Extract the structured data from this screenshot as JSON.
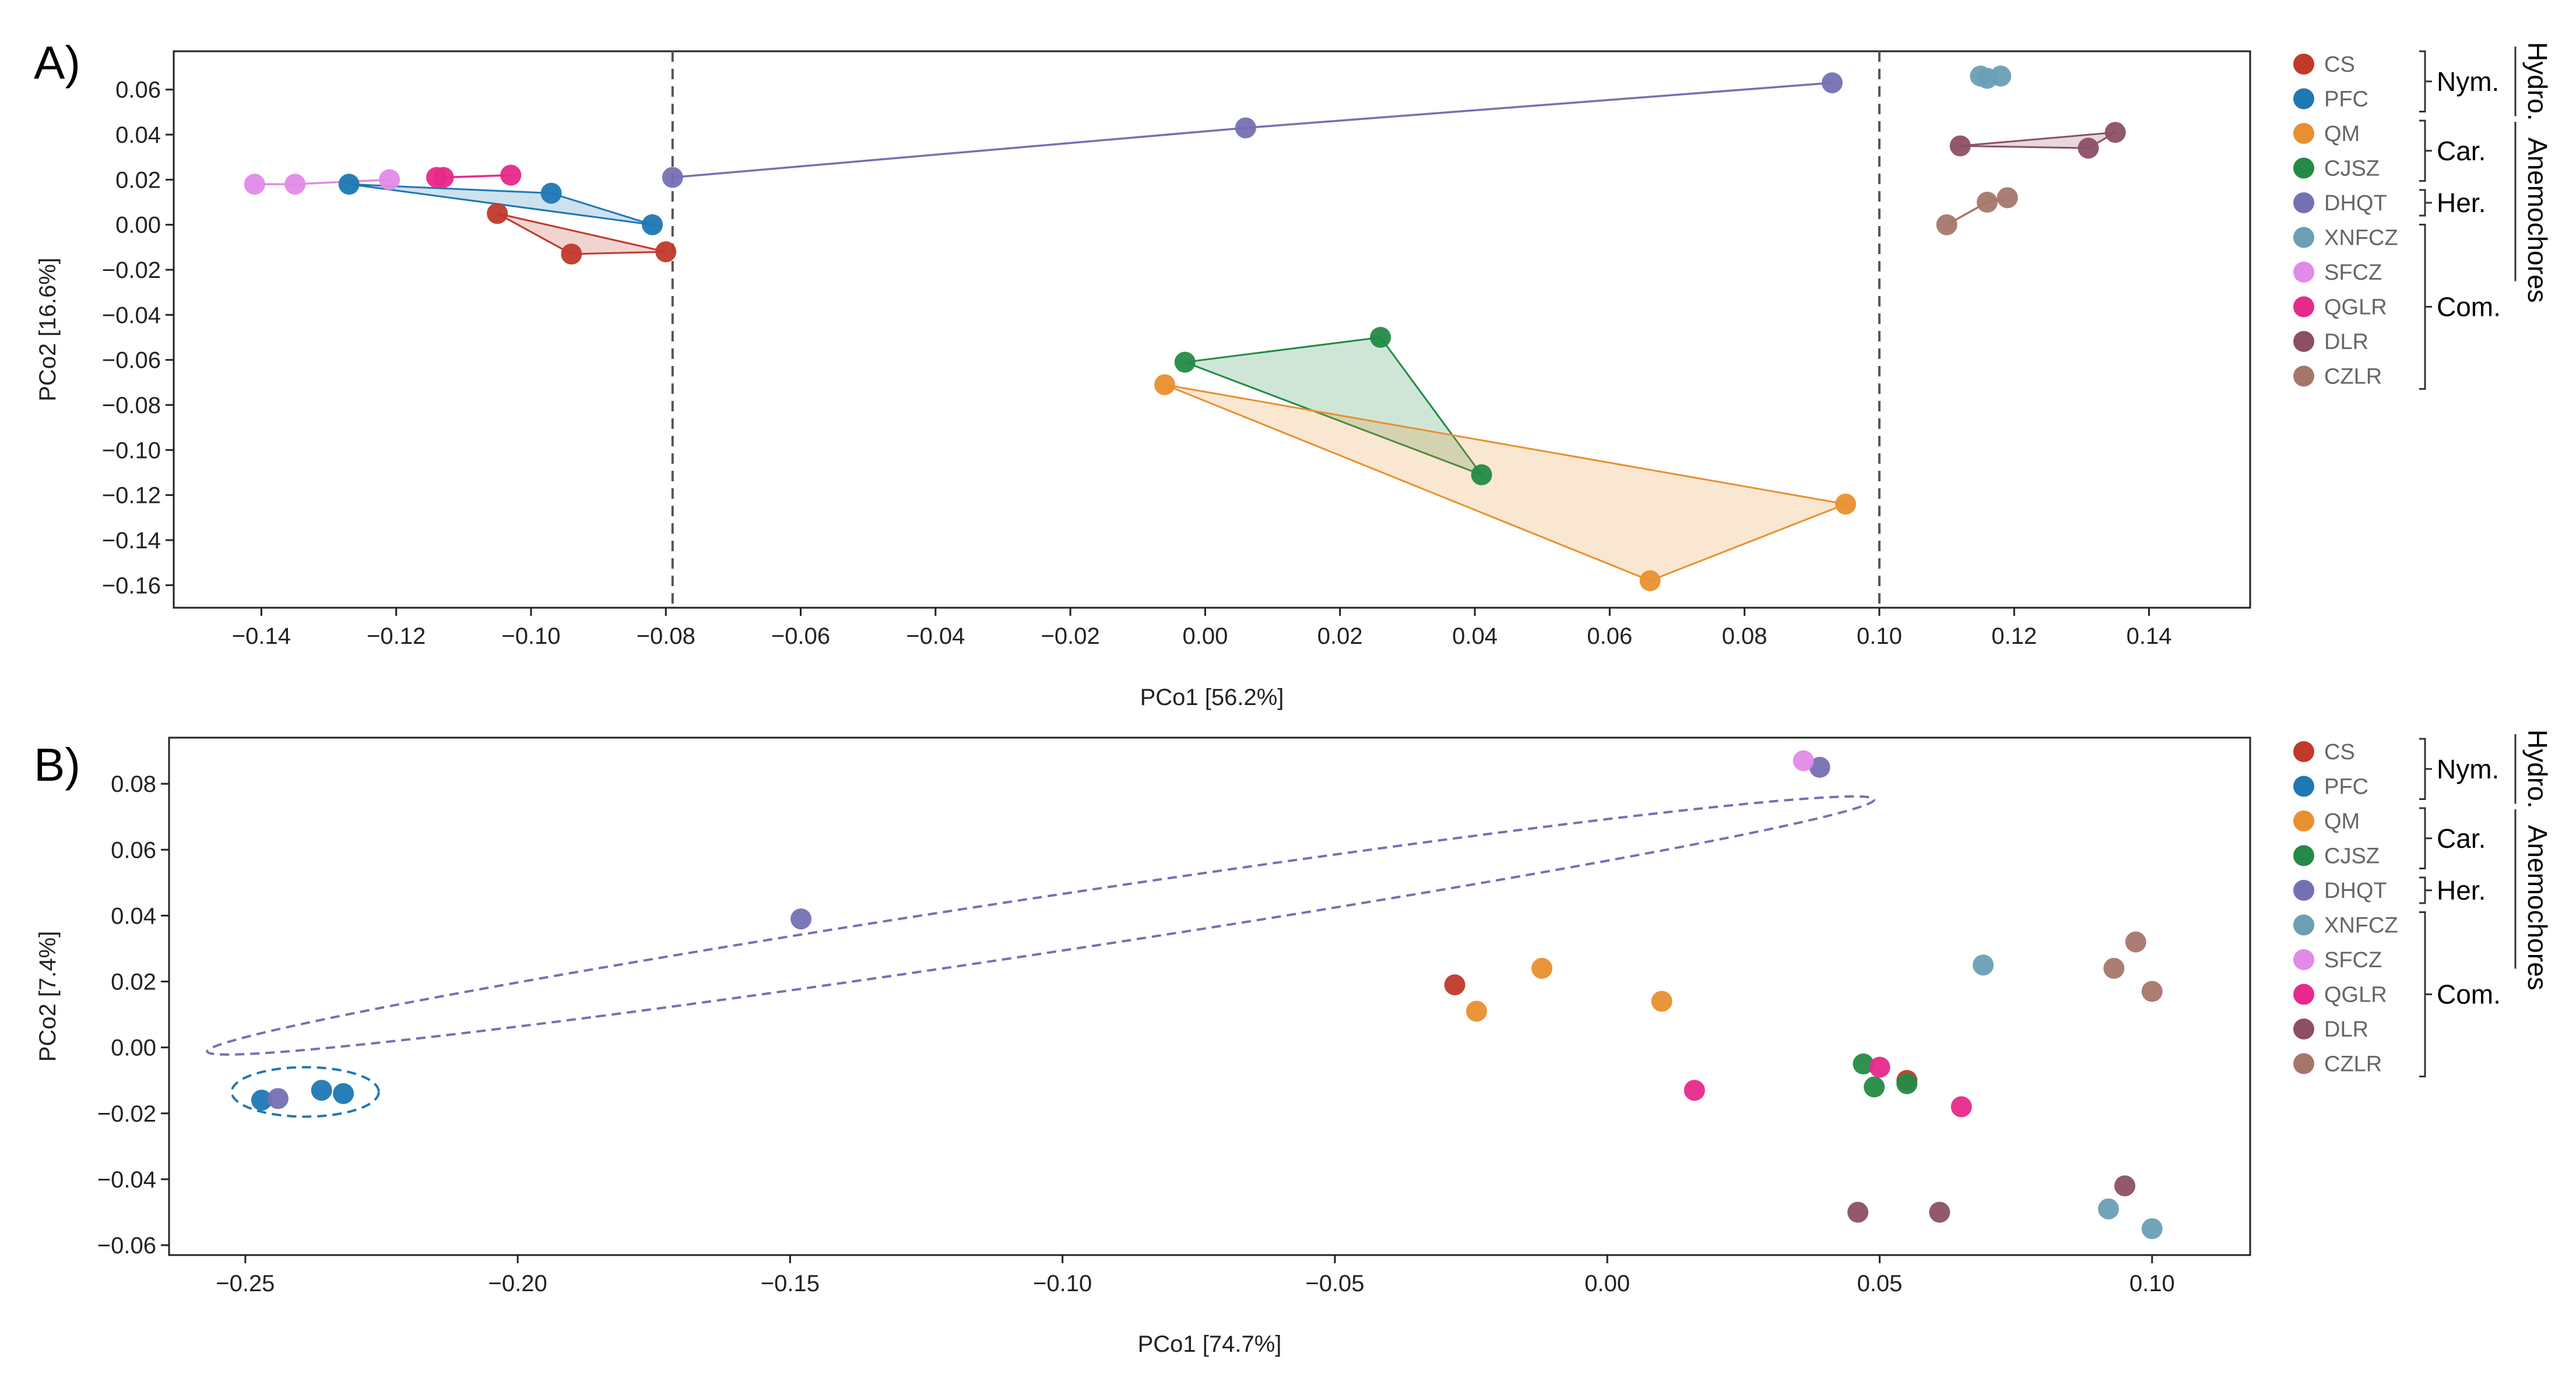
{
  "colors": {
    "CS": "#c0392b",
    "PFC": "#1f77b4",
    "QM": "#e8902f",
    "CJSZ": "#238b45",
    "DHQT": "#7570b3",
    "XNFCZ": "#6a9fb5",
    "SFCZ": "#e28ae8",
    "QGLR": "#e7298a",
    "DLR": "#8c4f66",
    "CZLR": "#a5776b"
  },
  "legend": {
    "items": [
      "CS",
      "PFC",
      "QM",
      "CJSZ",
      "DHQT",
      "XNFCZ",
      "SFCZ",
      "QGLR",
      "DLR",
      "CZLR"
    ],
    "groups": [
      {
        "label": "Nym.",
        "members": [
          "CS",
          "PFC"
        ]
      },
      {
        "label": "Car.",
        "members": [
          "QM",
          "CJSZ"
        ]
      },
      {
        "label": "Her.",
        "members": [
          "DHQT"
        ]
      },
      {
        "label": "Com.",
        "members": [
          "XNFCZ",
          "SFCZ",
          "QGLR",
          "DLR",
          "CZLR"
        ]
      }
    ],
    "super_groups": [
      {
        "label": "Hydro.",
        "members": [
          "CS",
          "PFC"
        ]
      },
      {
        "label": "Anemochores",
        "members": [
          "QM",
          "CJSZ",
          "DHQT",
          "XNFCZ",
          "SFCZ",
          "QGLR",
          "DLR",
          "CZLR"
        ]
      }
    ]
  },
  "chart_data": [
    {
      "panel_label": "A)",
      "type": "scatter",
      "xlabel": "PCo1 [56.2%]",
      "ylabel": "PCo2 [16.6%]",
      "xlim": [
        -0.153,
        0.155
      ],
      "ylim": [
        -0.17,
        0.077
      ],
      "xticks": [
        -0.14,
        -0.12,
        -0.1,
        -0.08,
        -0.06,
        -0.04,
        -0.02,
        0.0,
        0.02,
        0.04,
        0.06,
        0.08,
        0.1,
        0.12,
        0.14
      ],
      "xtick_labels": [
        "−0.14",
        "−0.12",
        "−0.10",
        "−0.08",
        "−0.06",
        "−0.04",
        "−0.02",
        "0.00",
        "0.02",
        "0.04",
        "0.06",
        "0.08",
        "0.10",
        "0.12",
        "0.14"
      ],
      "yticks": [
        0.06,
        0.04,
        0.02,
        0.0,
        -0.02,
        -0.04,
        -0.06,
        -0.08,
        -0.1,
        -0.12,
        -0.14,
        -0.16
      ],
      "ytick_labels": [
        "0.06",
        "0.04",
        "0.02",
        "0.00",
        "−0.02",
        "−0.04",
        "−0.06",
        "−0.08",
        "−0.10",
        "−0.12",
        "−0.14",
        "−0.16"
      ],
      "vlines": [
        -0.079,
        0.1
      ],
      "hulls": [
        {
          "series": "PFC",
          "points": [
            [
              -0.127,
              0.018
            ],
            [
              -0.097,
              0.014
            ],
            [
              -0.082,
              0.0
            ]
          ]
        },
        {
          "series": "CS",
          "points": [
            [
              -0.105,
              0.005
            ],
            [
              -0.094,
              -0.013
            ],
            [
              -0.08,
              -0.012
            ]
          ]
        },
        {
          "series": "CJSZ",
          "points": [
            [
              -0.003,
              -0.061
            ],
            [
              0.026,
              -0.05
            ],
            [
              0.041,
              -0.111
            ]
          ]
        },
        {
          "series": "QM",
          "points": [
            [
              -0.006,
              -0.071
            ],
            [
              0.066,
              -0.158
            ],
            [
              0.095,
              -0.124
            ]
          ]
        },
        {
          "series": "DLR",
          "points": [
            [
              0.112,
              0.035
            ],
            [
              0.131,
              0.034
            ],
            [
              0.135,
              0.041
            ]
          ]
        }
      ],
      "lines": [
        {
          "series": "DHQT",
          "points": [
            [
              -0.079,
              0.021
            ],
            [
              0.006,
              0.043
            ],
            [
              0.093,
              0.063
            ]
          ]
        },
        {
          "series": "SFCZ",
          "points": [
            [
              -0.141,
              0.018
            ],
            [
              -0.135,
              0.018
            ],
            [
              -0.121,
              0.02
            ]
          ]
        },
        {
          "series": "QGLR",
          "points": [
            [
              -0.113,
              0.021
            ],
            [
              -0.103,
              0.022
            ]
          ]
        },
        {
          "series": "CZLR",
          "points": [
            [
              0.11,
              0.0
            ],
            [
              0.116,
              0.01
            ],
            [
              0.119,
              0.012
            ]
          ]
        }
      ],
      "series": [
        {
          "name": "CS",
          "points": [
            [
              -0.105,
              0.005
            ],
            [
              -0.094,
              -0.013
            ],
            [
              -0.08,
              -0.012
            ]
          ]
        },
        {
          "name": "PFC",
          "points": [
            [
              -0.127,
              0.018
            ],
            [
              -0.097,
              0.014
            ],
            [
              -0.082,
              0.0
            ]
          ]
        },
        {
          "name": "QM",
          "points": [
            [
              -0.006,
              -0.071
            ],
            [
              0.066,
              -0.158
            ],
            [
              0.095,
              -0.124
            ]
          ]
        },
        {
          "name": "CJSZ",
          "points": [
            [
              -0.003,
              -0.061
            ],
            [
              0.026,
              -0.05
            ],
            [
              0.041,
              -0.111
            ]
          ]
        },
        {
          "name": "DHQT",
          "points": [
            [
              -0.079,
              0.021
            ],
            [
              0.006,
              0.043
            ],
            [
              0.093,
              0.063
            ]
          ]
        },
        {
          "name": "XNFCZ",
          "points": [
            [
              0.115,
              0.066
            ],
            [
              0.116,
              0.065
            ],
            [
              0.118,
              0.066
            ]
          ]
        },
        {
          "name": "SFCZ",
          "points": [
            [
              -0.141,
              0.018
            ],
            [
              -0.135,
              0.018
            ],
            [
              -0.121,
              0.02
            ]
          ]
        },
        {
          "name": "QGLR",
          "points": [
            [
              -0.114,
              0.021
            ],
            [
              -0.113,
              0.021
            ],
            [
              -0.103,
              0.022
            ]
          ]
        },
        {
          "name": "DLR",
          "points": [
            [
              0.112,
              0.035
            ],
            [
              0.131,
              0.034
            ],
            [
              0.135,
              0.041
            ]
          ]
        },
        {
          "name": "CZLR",
          "points": [
            [
              0.11,
              0.0
            ],
            [
              0.116,
              0.01
            ],
            [
              0.119,
              0.012
            ]
          ]
        }
      ]
    },
    {
      "panel_label": "B)",
      "type": "scatter",
      "xlabel": "PCo1 [74.7%]",
      "ylabel": "PCo2 [7.4%]",
      "xlim": [
        -0.264,
        0.118
      ],
      "ylim": [
        -0.063,
        0.094
      ],
      "xticks": [
        -0.25,
        -0.2,
        -0.15,
        -0.1,
        -0.05,
        0.0,
        0.05,
        0.1
      ],
      "xtick_labels": [
        "−0.25",
        "−0.20",
        "−0.15",
        "−0.10",
        "−0.05",
        "0.00",
        "0.05",
        "0.10"
      ],
      "yticks": [
        0.08,
        0.06,
        0.04,
        0.02,
        0.0,
        -0.02,
        -0.04,
        -0.06
      ],
      "ytick_labels": [
        "0.08",
        "0.06",
        "0.04",
        "0.02",
        "0.00",
        "−0.02",
        "−0.04",
        "−0.06"
      ],
      "ellipses": [
        {
          "series": "DHQT",
          "center": [
            -0.104,
            0.037
          ],
          "rx": 0.153,
          "ry": 0.0085,
          "angle": 0.25
        },
        {
          "series": "PFC",
          "center": [
            -0.239,
            -0.0135
          ],
          "rx": 0.0135,
          "ry": 0.0075,
          "angle": 0.0
        }
      ],
      "series": [
        {
          "name": "CS",
          "points": [
            [
              -0.028,
              0.019
            ],
            [
              0.055,
              -0.01
            ]
          ]
        },
        {
          "name": "PFC",
          "points": [
            [
              -0.247,
              -0.016
            ],
            [
              -0.236,
              -0.013
            ],
            [
              -0.232,
              -0.014
            ]
          ]
        },
        {
          "name": "QM",
          "points": [
            [
              -0.024,
              0.011
            ],
            [
              -0.012,
              0.024
            ],
            [
              0.01,
              0.014
            ]
          ]
        },
        {
          "name": "CJSZ",
          "points": [
            [
              0.047,
              -0.005
            ],
            [
              0.049,
              -0.012
            ],
            [
              0.055,
              -0.011
            ]
          ]
        },
        {
          "name": "DHQT",
          "points": [
            [
              -0.244,
              -0.0155
            ],
            [
              -0.148,
              0.039
            ],
            [
              0.039,
              0.085
            ]
          ]
        },
        {
          "name": "XNFCZ",
          "points": [
            [
              0.069,
              0.025
            ],
            [
              0.092,
              -0.049
            ],
            [
              0.1,
              -0.055
            ]
          ]
        },
        {
          "name": "SFCZ",
          "points": [
            [
              0.036,
              0.087
            ]
          ]
        },
        {
          "name": "QGLR",
          "points": [
            [
              0.016,
              -0.013
            ],
            [
              0.05,
              -0.006
            ],
            [
              0.065,
              -0.018
            ]
          ]
        },
        {
          "name": "DLR",
          "points": [
            [
              0.046,
              -0.05
            ],
            [
              0.061,
              -0.05
            ],
            [
              0.095,
              -0.042
            ]
          ]
        },
        {
          "name": "CZLR",
          "points": [
            [
              0.093,
              0.024
            ],
            [
              0.097,
              0.032
            ],
            [
              0.1,
              0.017
            ]
          ]
        }
      ]
    }
  ]
}
